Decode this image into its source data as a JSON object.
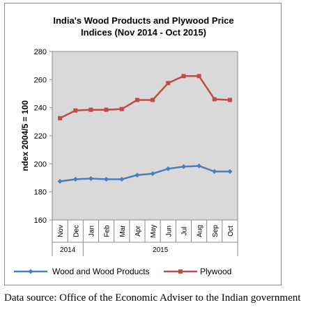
{
  "chart_data": {
    "type": "line",
    "title_line1": "India's Wood Products and Plywood Price",
    "title_line2": "Indices (Nov 2014 - Oct 2015)",
    "ylabel": "ndex 2004/5 = 100",
    "xlabel": "",
    "ylim": [
      160,
      280
    ],
    "yticks": [
      160,
      180,
      200,
      220,
      240,
      260,
      280
    ],
    "categories": [
      "Nov",
      "Dec",
      "Jan",
      "Feb",
      "Mar",
      "Apr",
      "May",
      "Jun",
      "Jul",
      "Aug",
      "Sep",
      "Oct"
    ],
    "year_groups": [
      {
        "label": "2014",
        "count": 2
      },
      {
        "label": "2015",
        "count": 10
      }
    ],
    "grid": false,
    "plot_background": "#d9d9d9",
    "legend_position": "bottom",
    "series": [
      {
        "name": "Wood and Wood Products",
        "color": "#4a7ebb",
        "marker": "diamond",
        "values": [
          187.5,
          189,
          189.5,
          189,
          189,
          192,
          193,
          196.5,
          198,
          198.5,
          194.5,
          194.5
        ]
      },
      {
        "name": "Plywood",
        "color": "#be4b48",
        "marker": "square",
        "values": [
          232.5,
          238,
          238.5,
          238.5,
          239,
          245.5,
          245.5,
          257.5,
          262.5,
          262.5,
          246,
          245.5
        ]
      }
    ]
  },
  "source_note": "Data source: Office of the Economic Adviser to the Indian government"
}
